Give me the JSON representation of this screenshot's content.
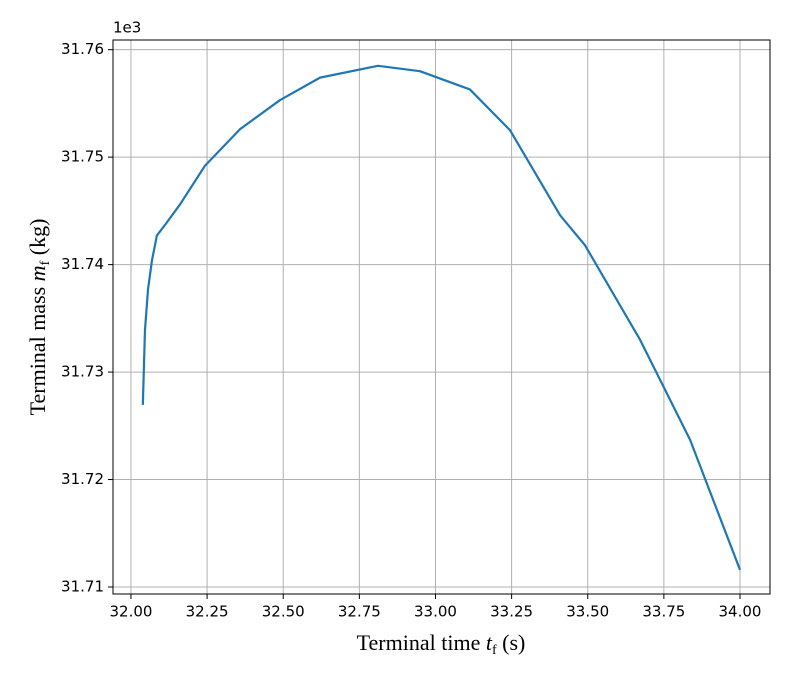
{
  "chart_data": {
    "type": "line",
    "xlabel": {
      "prefix": "Terminal time ",
      "symbol": "t",
      "subscript": "f",
      "suffix": " (s)"
    },
    "ylabel": {
      "prefix": "Terminal mass ",
      "symbol": "m",
      "subscript": "f",
      "suffix": " (kg)"
    },
    "y_offset_label": "1e3",
    "x": [
      32.039,
      32.046,
      32.056,
      32.069,
      32.085,
      32.112,
      32.161,
      32.243,
      32.358,
      32.489,
      32.621,
      32.811,
      32.949,
      33.113,
      33.245,
      33.409,
      33.491,
      33.672,
      33.836,
      34.0
    ],
    "values": [
      31.72695,
      31.7339,
      31.7377,
      31.7404,
      31.7427,
      31.7437,
      31.7456,
      31.7492,
      31.7526,
      31.7553,
      31.7574,
      31.7585,
      31.758,
      31.7563,
      31.7525,
      31.7446,
      31.7418,
      31.733,
      31.7237,
      31.7116
    ],
    "color": "#1f77b4",
    "xlim": [
      31.941,
      34.0985
    ],
    "ylim": [
      31.70935,
      31.7609
    ],
    "xticks": [
      {
        "value": 32,
        "label": "32.00"
      },
      {
        "value": 32.25,
        "label": "32.25"
      },
      {
        "value": 32.5,
        "label": "32.50"
      },
      {
        "value": 32.75,
        "label": "32.75"
      },
      {
        "value": 33,
        "label": "33.00"
      },
      {
        "value": 33.25,
        "label": "33.25"
      },
      {
        "value": 33.5,
        "label": "33.50"
      },
      {
        "value": 33.75,
        "label": "33.75"
      },
      {
        "value": 34,
        "label": "34.00"
      }
    ],
    "yticks": [
      31.71,
      31.72,
      31.73,
      31.74,
      31.75,
      31.76
    ],
    "grid": true
  }
}
